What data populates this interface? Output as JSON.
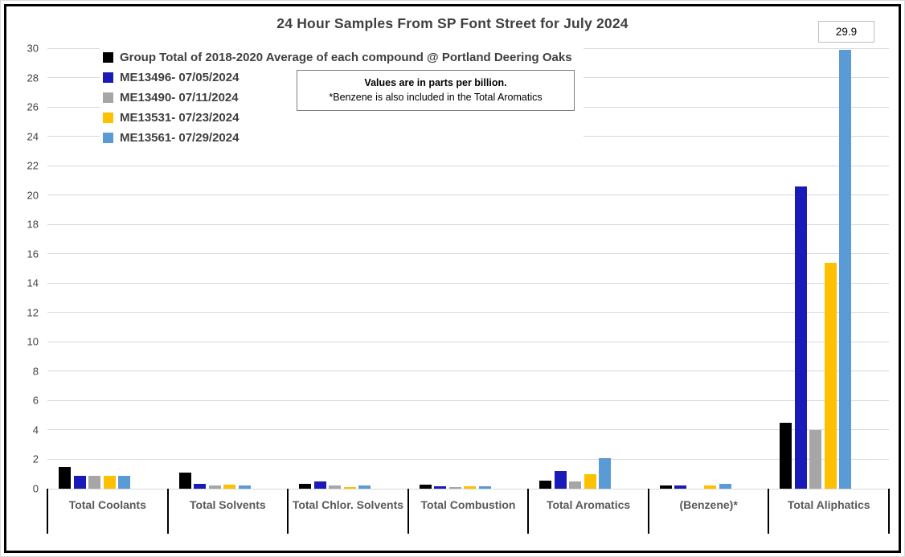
{
  "title": "24 Hour Samples From SP Font Street for July 2024",
  "note": {
    "line1": "Values are in parts per billion.",
    "line2": "*Benzene is also included in the Total Aromatics"
  },
  "max_data_label": "29.9",
  "colors": {
    "grid": "#d9d9d9",
    "axis_text": "#404040",
    "category_text": "#595959",
    "title_text": "#3f3f3f",
    "frame_border": "#000000"
  },
  "chart_data": {
    "type": "bar",
    "title": "24 Hour Samples From SP Font Street for July 2024",
    "categories": [
      "Total Coolants",
      "Total Solvents",
      "Total Chlor. Solvents",
      "Total Combustion",
      "Total Aromatics",
      "(Benzene)*",
      "Total Aliphatics"
    ],
    "series": [
      {
        "name": "Group Total of 2018-2020 Average of each compound @ Portland Deering Oaks",
        "color": "#000000",
        "values": [
          1.5,
          1.1,
          0.35,
          0.25,
          0.55,
          0.2,
          4.5
        ]
      },
      {
        "name": "ME13496- 07/05/2024",
        "color": "#1a1ab8",
        "values": [
          0.9,
          0.35,
          0.5,
          0.15,
          1.2,
          0.2,
          20.6
        ]
      },
      {
        "name": "ME13490- 07/11/2024",
        "color": "#a6a6a6",
        "values": [
          0.85,
          0.2,
          0.2,
          0.1,
          0.5,
          0,
          4.0
        ]
      },
      {
        "name": "ME13531- 07/23/2024",
        "color": "#ffc000",
        "values": [
          0.85,
          0.25,
          0.1,
          0.15,
          1.0,
          0.2,
          15.4
        ]
      },
      {
        "name": "ME13561- 07/29/2024",
        "color": "#5b9bd5",
        "values": [
          0.9,
          0.2,
          0.2,
          0.15,
          2.1,
          0.35,
          29.9
        ]
      }
    ],
    "y_ticks": [
      0,
      2,
      4,
      6,
      8,
      10,
      12,
      14,
      16,
      18,
      20,
      22,
      24,
      26,
      28,
      30
    ],
    "ylim": [
      0,
      30
    ],
    "grid": true,
    "legend_position": "top-left",
    "annotations": [
      {
        "text": "29.9",
        "series": "ME13561- 07/29/2024",
        "category": "Total Aliphatics"
      }
    ],
    "notes": [
      "Values are in parts per billion.",
      "*Benzene is also included in the Total Aromatics"
    ]
  }
}
